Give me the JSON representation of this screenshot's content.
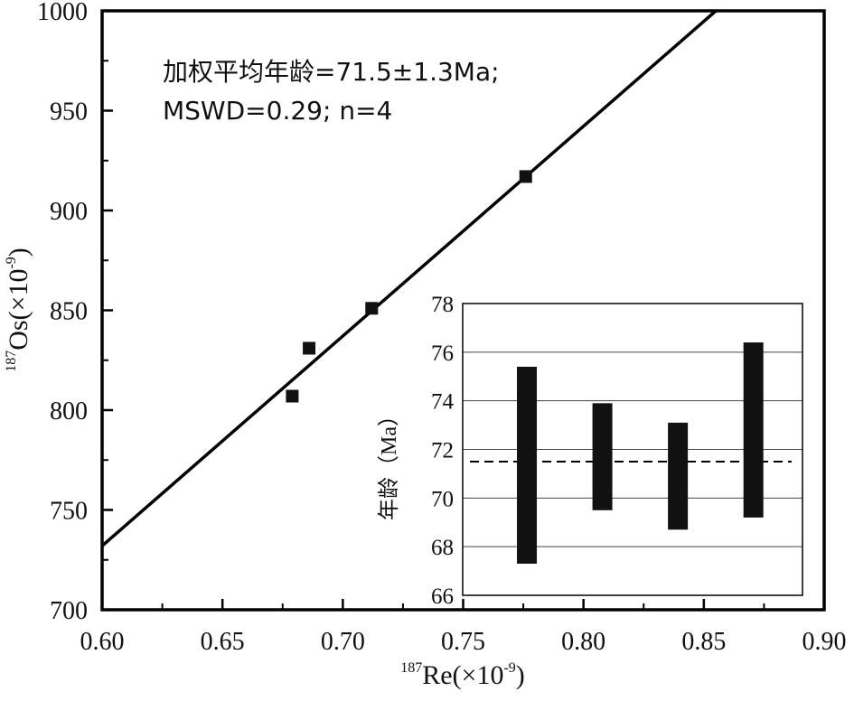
{
  "chart_data": [
    {
      "type": "scatter",
      "title": "",
      "xlabel": {
        "sup": "187",
        "text": "Re(×10",
        "exp": "-9",
        "close": ")"
      },
      "ylabel": {
        "sup": "187",
        "text": "Os(×10",
        "exp": "-9",
        "close": ")"
      },
      "xlim": [
        0.6,
        0.9
      ],
      "ylim": [
        700,
        1000
      ],
      "xticks": [
        0.6,
        0.65,
        0.7,
        0.75,
        0.8,
        0.85,
        0.9
      ],
      "xtick_labels": [
        "0.60",
        "0.65",
        "0.70",
        "0.75",
        "0.80",
        "0.85",
        "0.90"
      ],
      "yticks": [
        700,
        750,
        800,
        850,
        900,
        950,
        1000
      ],
      "ytick_labels": [
        "700",
        "750",
        "800",
        "850",
        "900",
        "950",
        "1000"
      ],
      "points": [
        {
          "x": 0.679,
          "y": 807
        },
        {
          "x": 0.686,
          "y": 831
        },
        {
          "x": 0.712,
          "y": 851
        },
        {
          "x": 0.776,
          "y": 917
        }
      ],
      "fit_line": {
        "x": [
          0.6,
          0.855
        ],
        "y": [
          732,
          1000
        ]
      },
      "annotations": [
        "加权平均年龄=71.5±1.3Ma;",
        "MSWD=0.29;  n=4"
      ]
    },
    {
      "type": "bar",
      "subtype": "error-bar",
      "ylabel": "年龄（Ma）",
      "ylim": [
        66,
        78
      ],
      "yticks": [
        66,
        68,
        70,
        72,
        74,
        76,
        78
      ],
      "ytick_labels": [
        "66",
        "68",
        "70",
        "72",
        "74",
        "76",
        "78"
      ],
      "grid": true,
      "bars": [
        {
          "low": 67.3,
          "high": 75.4
        },
        {
          "low": 69.5,
          "high": 73.9
        },
        {
          "low": 68.7,
          "high": 73.1
        },
        {
          "low": 69.2,
          "high": 76.4
        }
      ],
      "mean": 71.5
    }
  ]
}
